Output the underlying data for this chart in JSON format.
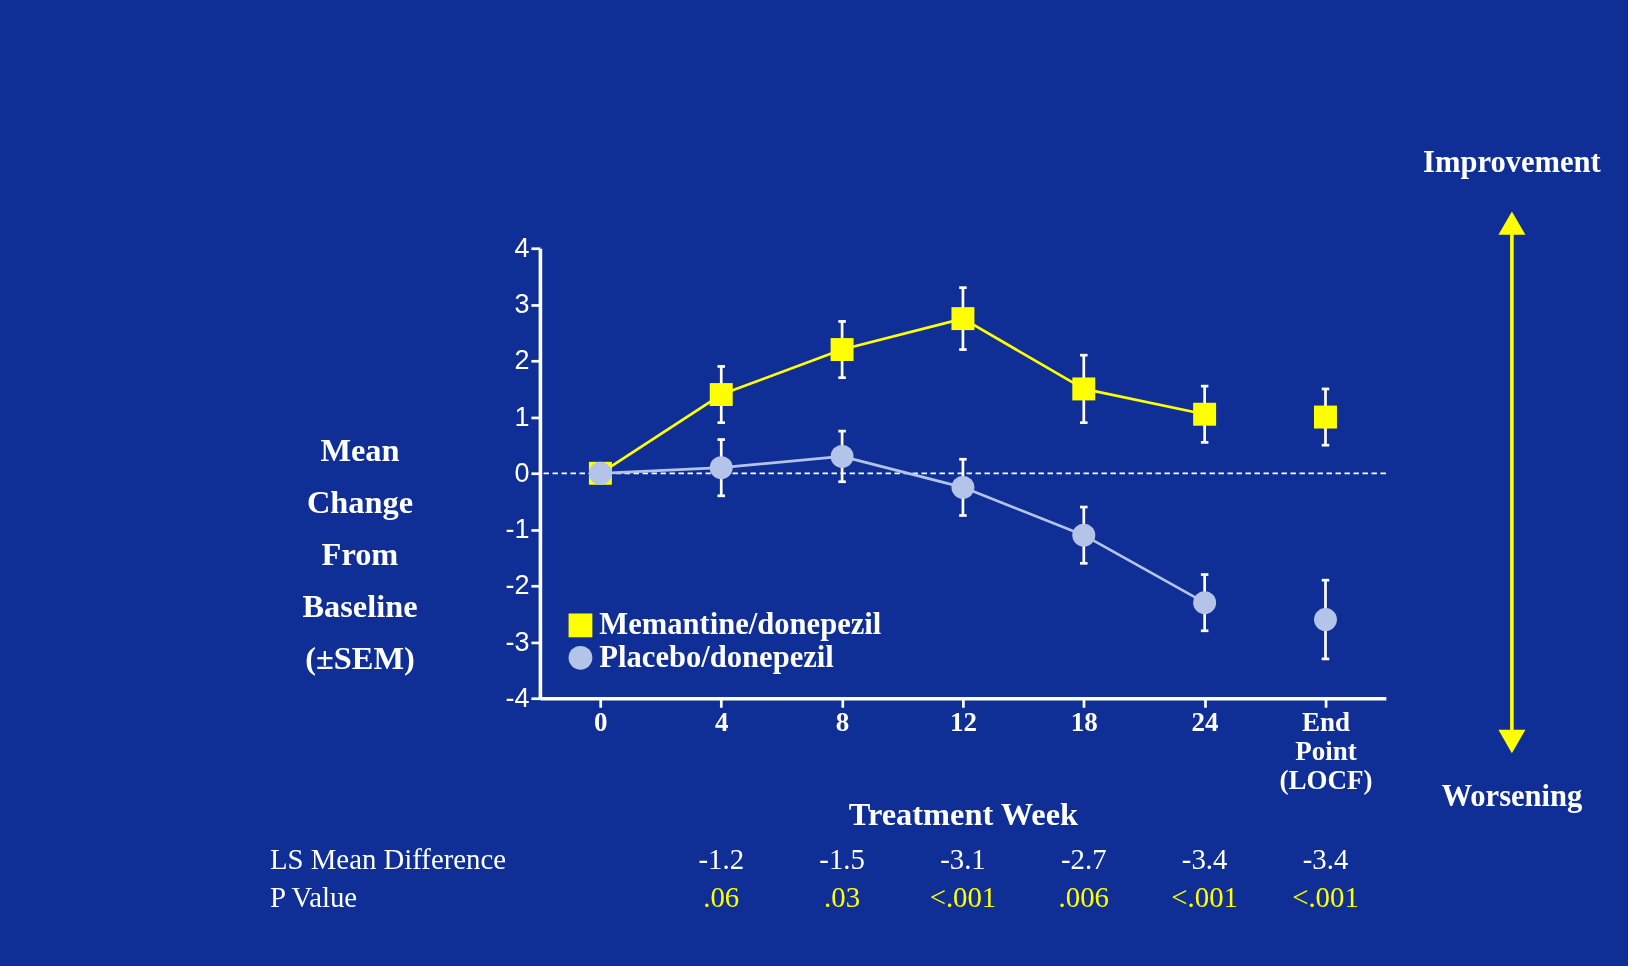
{
  "chart_data": {
    "type": "line",
    "xlabel": "Treatment Week",
    "ylabel": "Mean Change From Baseline (±SEM)",
    "categories": [
      "0",
      "4",
      "8",
      "12",
      "18",
      "24",
      "End Point (LOCF)"
    ],
    "ylim": [
      -4,
      4
    ],
    "yticks": [
      -4,
      -3,
      -2,
      -1,
      0,
      1,
      2,
      3,
      4
    ],
    "grid": false,
    "legend": "bottom left",
    "series": [
      {
        "name": "Memantine/donepezil",
        "color": "#ffff00",
        "marker": "square",
        "x": [
          "0",
          "4",
          "8",
          "12",
          "18",
          "24"
        ],
        "values": [
          0,
          1.4,
          2.2,
          2.75,
          1.5,
          1.05
        ],
        "errors": [
          null,
          0.5,
          0.5,
          0.55,
          0.6,
          0.5
        ]
      },
      {
        "name": "Placebo/donepezil",
        "color": "#b4c4e8",
        "marker": "circle",
        "x": [
          "0",
          "4",
          "8",
          "12",
          "18",
          "24"
        ],
        "values": [
          0,
          0.1,
          0.3,
          -0.25,
          -1.1,
          -2.3
        ],
        "errors": [
          null,
          0.5,
          0.45,
          0.5,
          0.5,
          0.5
        ]
      },
      {
        "type": "scatter",
        "color": "#ffff00",
        "marker": "square",
        "x": [
          "End Point (LOCF)"
        ],
        "values": [
          1.0
        ],
        "errors": [
          0.5
        ]
      },
      {
        "type": "scatter",
        "color": "#b4c4e8",
        "marker": "circle",
        "x": [
          "End Point (LOCF)"
        ],
        "values": [
          -2.6
        ],
        "errors": [
          0.7
        ]
      }
    ],
    "ref_lines": [
      {
        "axis": "y",
        "value": 0,
        "color": "#ffffff",
        "line_style": "dashed"
      }
    ],
    "annotations": [
      "Improvement",
      "Worsening",
      "LS Mean Difference",
      "-1.2",
      "-1.5",
      "-3.1",
      "-2.7",
      "-3.4",
      "-3.4",
      "P Value",
      ".06",
      ".03",
      "<.001",
      ".006",
      "<.001",
      "<.001"
    ]
  }
}
